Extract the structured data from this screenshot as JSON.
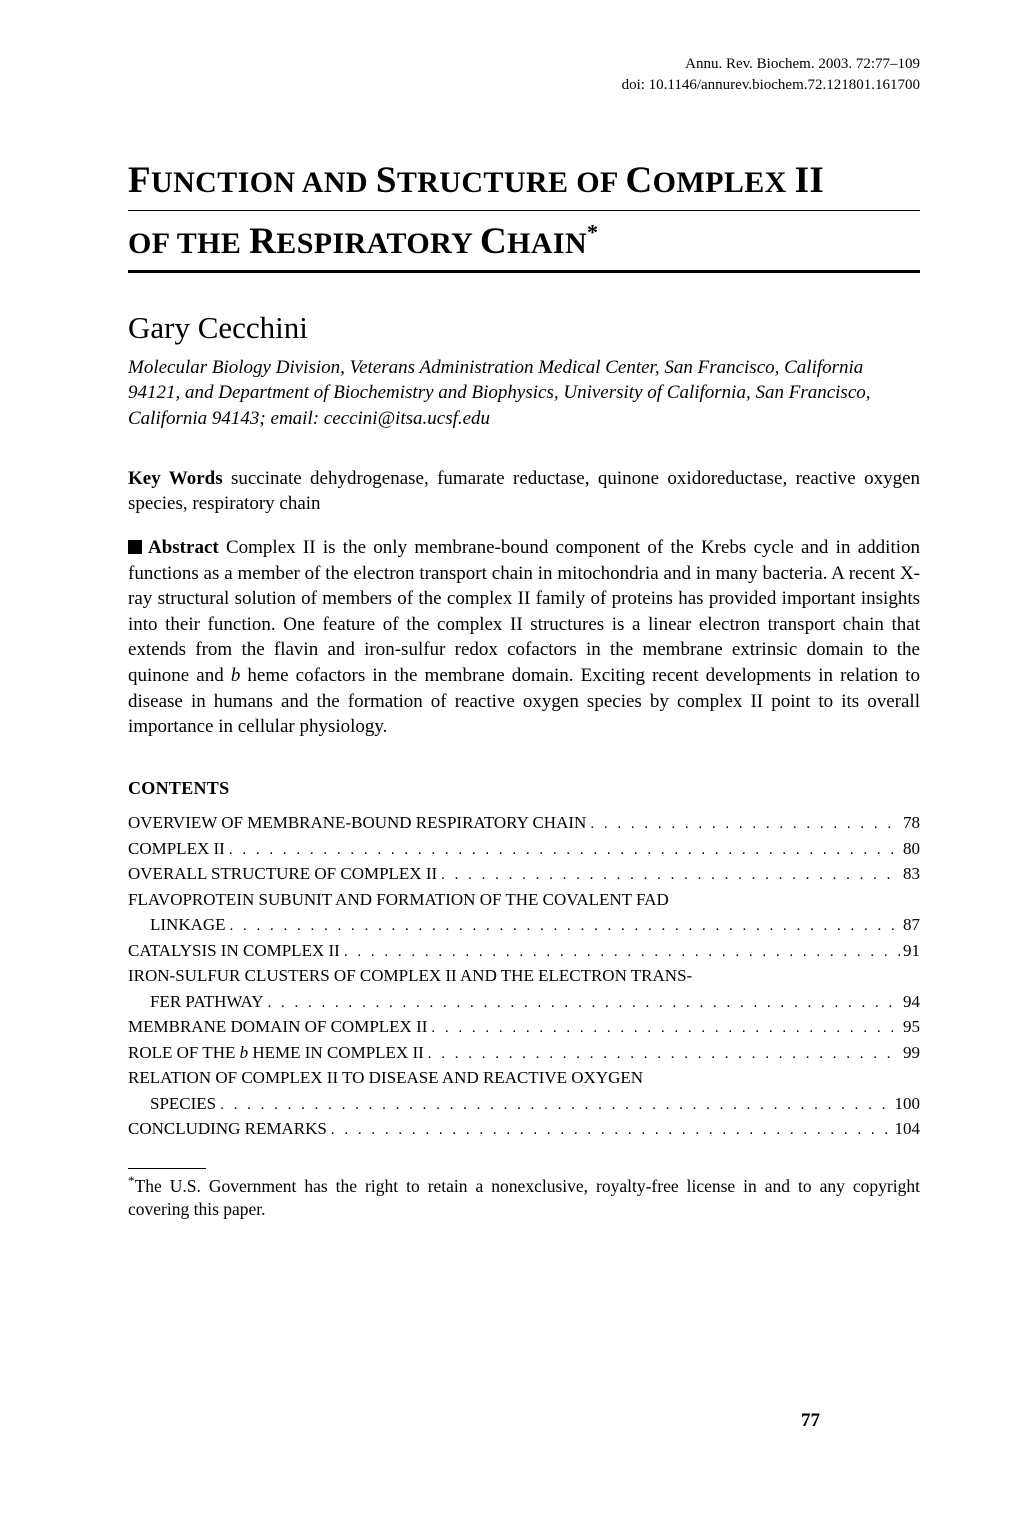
{
  "header": {
    "journal_line": "Annu. Rev. Biochem. 2003. 72:77–109",
    "doi_line": "doi: 10.1146/annurev.biochem.72.121801.161700"
  },
  "title": {
    "line1_pre": "F",
    "line1_sc": "UNCTION AND ",
    "line1_pre2": "S",
    "line1_sc2": "TRUCTURE OF ",
    "line1_pre3": "C",
    "line1_sc3": "OMPLEX ",
    "line1_tail": "II",
    "line2_sc1": "OF THE ",
    "line2_pre": "R",
    "line2_sc2": "ESPIRATORY ",
    "line2_pre2": "C",
    "line2_sc3": "HAIN",
    "line2_sup": "*"
  },
  "author": "Gary Cecchini",
  "affiliation": "Molecular Biology Division, Veterans Administration Medical Center, San Francisco, California 94121, and Department of Biochemistry and Biophysics, University of California, San Francisco, California 94143; email: ceccini@itsa.ucsf.edu",
  "keywords": {
    "label": "Key Words",
    "text": "    succinate dehydrogenase, fumarate reductase, quinone oxidoreductase, reactive oxygen species, respiratory chain"
  },
  "abstract": {
    "label": "Abstract",
    "text_pre": "    Complex II is the only membrane-bound component of the Krebs cycle and in addition functions as a member of the electron transport chain in mitochondria and in many bacteria. A recent X-ray structural solution of members of the complex II family of proteins has provided important insights into their function. One feature of the complex II structures is a linear electron transport chain that extends from the flavin and iron-sulfur redox cofactors in the membrane extrinsic domain to the quinone and ",
    "text_italic": "b",
    "text_post": " heme cofactors in the membrane domain. Exciting recent developments in relation to disease in humans and the formation of reactive oxygen species by complex II point to its overall importance in cellular physiology."
  },
  "contents_heading": "CONTENTS",
  "toc": [
    {
      "label": "OVERVIEW OF MEMBRANE-BOUND RESPIRATORY CHAIN",
      "page": "78",
      "sub": false
    },
    {
      "label": "COMPLEX II",
      "page": "80",
      "sub": false
    },
    {
      "label": "OVERALL STRUCTURE OF COMPLEX II",
      "page": "83",
      "sub": false
    },
    {
      "label": "FLAVOPROTEIN SUBUNIT AND FORMATION OF THE COVALENT FAD",
      "page": "",
      "sub": false
    },
    {
      "label": "LINKAGE",
      "page": "87",
      "sub": true
    },
    {
      "label": "CATALYSIS IN COMPLEX II",
      "page": "91",
      "sub": false
    },
    {
      "label": "IRON-SULFUR CLUSTERS OF COMPLEX II AND THE ELECTRON TRANS-",
      "page": "",
      "sub": false
    },
    {
      "label": "FER PATHWAY",
      "page": "94",
      "sub": true
    },
    {
      "label": "MEMBRANE DOMAIN OF COMPLEX II",
      "page": "95",
      "sub": false
    },
    {
      "label_pre": "ROLE OF THE ",
      "label_it": "b",
      "label_post": " HEME IN COMPLEX II",
      "page": "99",
      "sub": false,
      "hasItalic": true
    },
    {
      "label": "RELATION OF COMPLEX II TO DISEASE AND REACTIVE OXYGEN",
      "page": "",
      "sub": false
    },
    {
      "label": "SPECIES",
      "page": "100",
      "sub": true
    },
    {
      "label": "CONCLUDING REMARKS",
      "page": "104",
      "sub": false
    }
  ],
  "footnote": {
    "marker": "*",
    "text": "The U.S. Government has the right to retain a nonexclusive, royalty-free license in and to any copyright covering this paper."
  },
  "page_number": "77",
  "colors": {
    "text": "#000000",
    "background": "#ffffff"
  },
  "fonts": {
    "body_family": "Times New Roman",
    "body_size_pt": 14,
    "title_size_pt": 28,
    "author_size_pt": 23,
    "toc_size_pt": 13,
    "header_size_pt": 11
  }
}
